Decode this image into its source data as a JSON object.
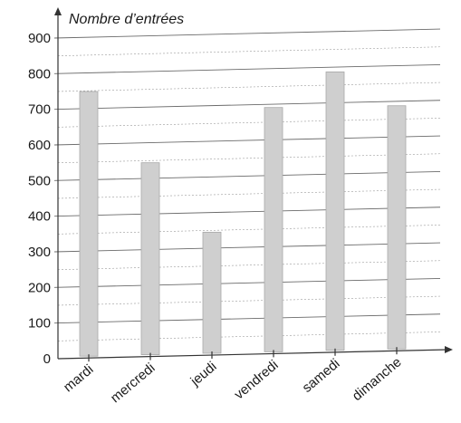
{
  "chart_data": {
    "type": "bar",
    "ylabel": "Nombre d’entrées",
    "xlabel": "",
    "categories": [
      "mardi",
      "mercredi",
      "jeudi",
      "vendredi",
      "samedi",
      "dimanche"
    ],
    "values": [
      750,
      550,
      355,
      705,
      805,
      710
    ],
    "ylim": [
      0,
      900
    ],
    "yticks": [
      "0",
      "100",
      "200",
      "300",
      "400",
      "500",
      "600",
      "700",
      "800",
      "900"
    ],
    "grid": true,
    "bar_color": "#cfcfcf"
  }
}
